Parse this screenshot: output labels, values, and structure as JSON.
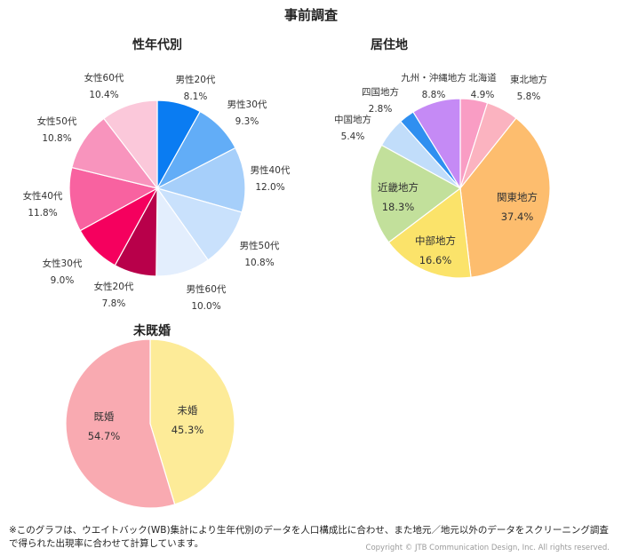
{
  "page": {
    "title": "事前調査",
    "footnote": "※このグラフは、ウエイトバック(WB)集計により生年代別のデータを人口構成比に合わせ、また地元／地元以外のデータをスクリーニング調査で得られた出現率に合わせて計算しています。",
    "copyright": "Copyright © JTB Communication Design, Inc. All rights reserved."
  },
  "charts": {
    "age_gender": {
      "title": "性年代別"
    },
    "residence": {
      "title": "居住地"
    },
    "marital": {
      "title": "未既婚"
    }
  },
  "chart_data": [
    {
      "type": "pie",
      "title": "性年代別",
      "categories": [
        "男性20代",
        "男性30代",
        "男性40代",
        "男性50代",
        "男性60代",
        "女性20代",
        "女性30代",
        "女性40代",
        "女性50代",
        "女性60代"
      ],
      "values": [
        8.1,
        9.3,
        12.0,
        10.8,
        10.0,
        7.8,
        9.0,
        11.8,
        10.8,
        10.4
      ],
      "value_labels": [
        "8.1%",
        "9.3%",
        "12.0%",
        "10.8%",
        "10.0%",
        "7.8%",
        "9.0%",
        "11.8%",
        "10.8%",
        "10.4%"
      ],
      "colors": [
        "#0a7cf2",
        "#62adf7",
        "#a6cffa",
        "#c9e1fc",
        "#e3eefd",
        "#b8004a",
        "#f5005e",
        "#f862a0",
        "#f894bd",
        "#fbc8da"
      ],
      "label_position": "outside",
      "start_angle": "12 o'clock, clockwise",
      "units": "%"
    },
    {
      "type": "pie",
      "title": "居住地",
      "categories": [
        "北海道",
        "東北地方",
        "関東地方",
        "中部地方",
        "近畿地方",
        "中国地方",
        "四国地方",
        "九州・沖縄地方"
      ],
      "values": [
        4.9,
        5.8,
        37.4,
        16.6,
        18.3,
        5.4,
        2.8,
        8.8
      ],
      "value_labels": [
        "4.9%",
        "5.8%",
        "37.4%",
        "16.6%",
        "18.3%",
        "5.4%",
        "2.8%",
        "8.8%"
      ],
      "colors": [
        "#f99dc4",
        "#fbb3c0",
        "#fdbd6e",
        "#fbe36a",
        "#c2e09b",
        "#c1ddfa",
        "#2f8ff0",
        "#c58af5"
      ],
      "label_position": "mixed (small outside, large inside)",
      "start_angle": "12 o'clock, clockwise",
      "units": "%"
    },
    {
      "type": "pie",
      "title": "未既婚",
      "categories": [
        "未婚",
        "既婚"
      ],
      "values": [
        45.3,
        54.7
      ],
      "value_labels": [
        "45.3%",
        "54.7%"
      ],
      "colors": [
        "#fdeb98",
        "#f9aab1"
      ],
      "label_position": "inside",
      "start_angle": "12 o'clock, clockwise",
      "units": "%"
    }
  ]
}
